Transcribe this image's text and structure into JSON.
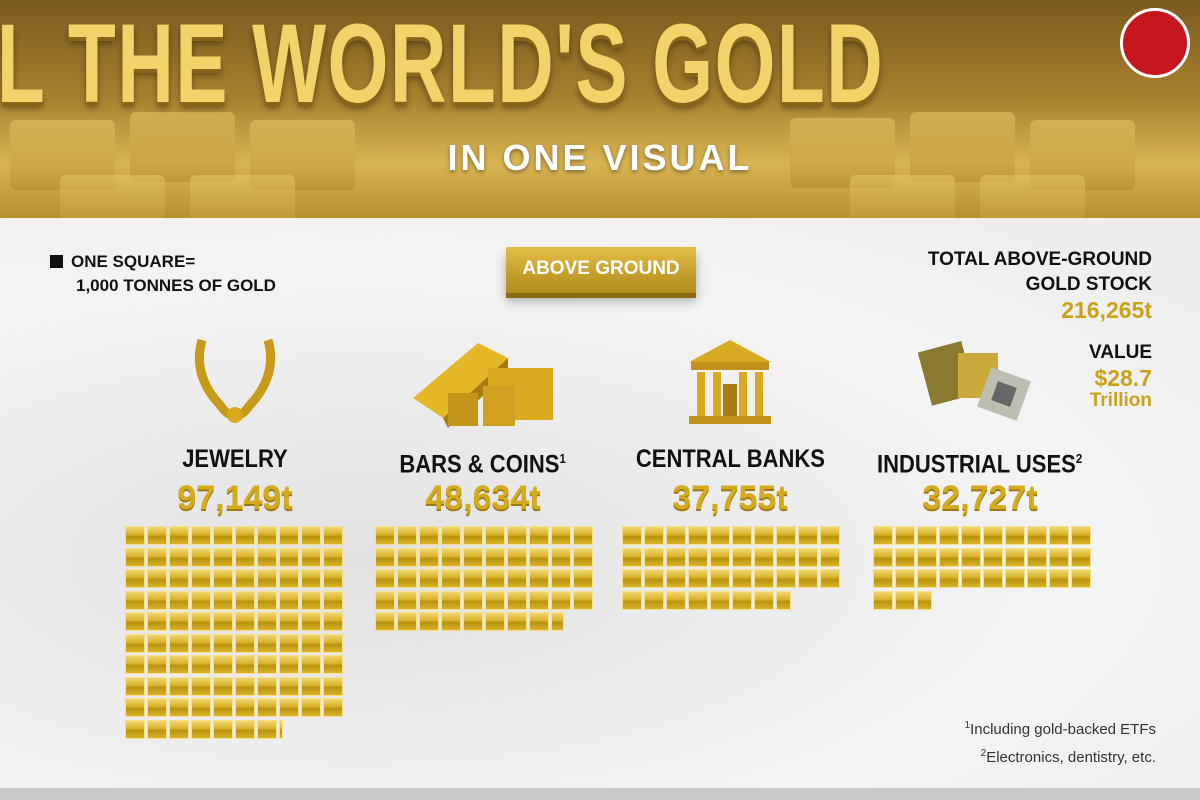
{
  "header": {
    "title": "ALL THE WORLD'S GOLD",
    "subtitle": "IN ONE VISUAL"
  },
  "legend": {
    "line1": "ONE SQUARE=",
    "line2": "1,000 TONNES OF GOLD"
  },
  "badge": "ABOVE GROUND",
  "totals": {
    "stock_label1": "TOTAL ABOVE-GROUND",
    "stock_label2": "GOLD STOCK",
    "stock_value": "216,265t",
    "value_label": "VALUE",
    "value_amount": "$28.7",
    "value_unit": "Trillion"
  },
  "colors": {
    "gold": "#d4ab1e",
    "header": "#a8812e",
    "logo": "#c4161c"
  },
  "chart_data": {
    "type": "waffle",
    "unit": "1,000 tonnes per square",
    "categories": [
      {
        "name": "JEWELRY",
        "footnote": "",
        "value": 97149,
        "label": "97,149t",
        "icon": "necklace-icon"
      },
      {
        "name": "BARS & COINS",
        "footnote": "1",
        "value": 48634,
        "label": "48,634t",
        "icon": "gold-bars-coins-icon"
      },
      {
        "name": "CENTRAL BANKS",
        "footnote": "",
        "value": 37755,
        "label": "37,755t",
        "icon": "bank-icon"
      },
      {
        "name": "INDUSTRIAL USES",
        "footnote": "2",
        "value": 32727,
        "label": "32,727t",
        "icon": "microchip-icon"
      }
    ]
  },
  "notes": [
    {
      "mark": "1",
      "text": "Including gold-backed ETFs"
    },
    {
      "mark": "2",
      "text": "Electronics, dentistry, etc."
    }
  ]
}
